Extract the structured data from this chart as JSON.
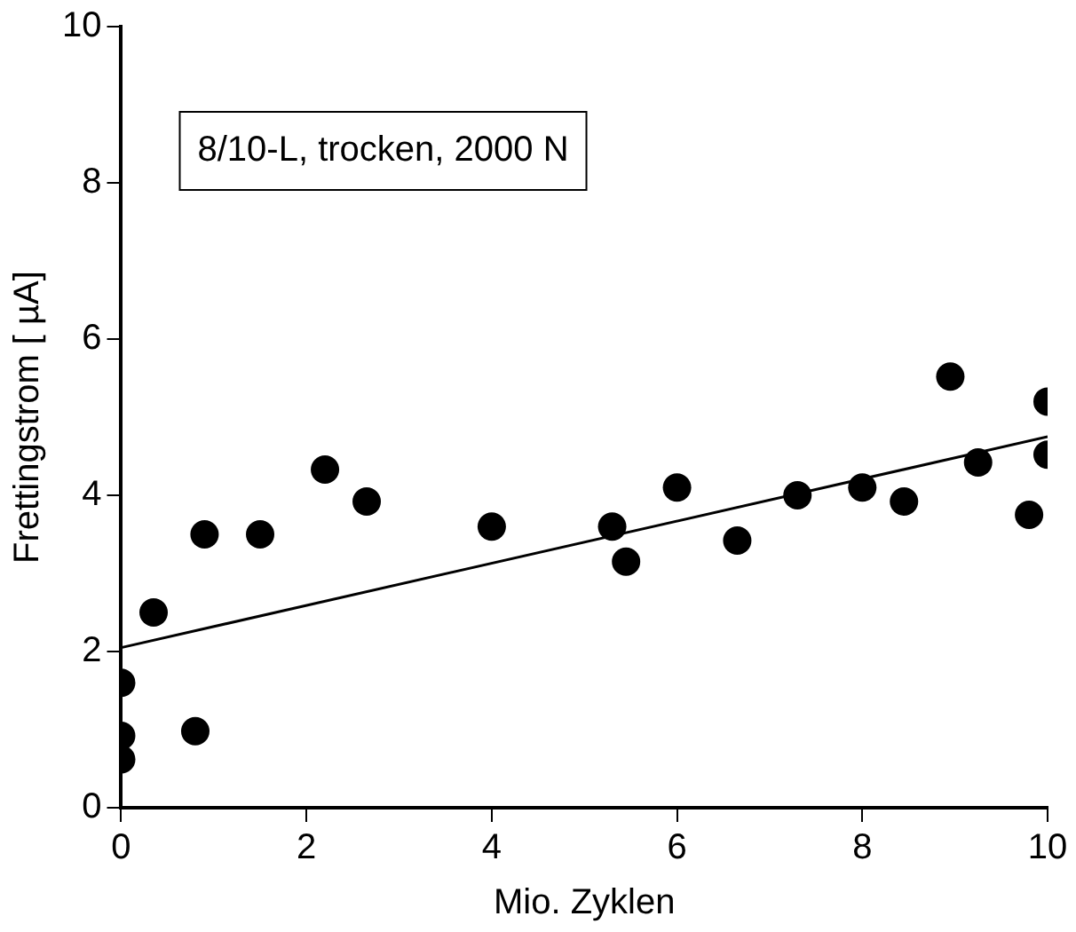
{
  "chart_data": {
    "type": "scatter",
    "xlabel": "Mio. Zyklen",
    "ylabel": "Frettingstrom [ µA]",
    "annotations": [
      "8/10-L, trocken, 2000 N"
    ],
    "xlim": [
      0,
      10
    ],
    "xticks": [
      0,
      2,
      4,
      6,
      8,
      10
    ],
    "ylim": [
      0,
      10
    ],
    "yticks": [
      0,
      2,
      4,
      6,
      8,
      10
    ],
    "grid": false,
    "legend": false,
    "marker": "circle",
    "series": [
      {
        "color": "#000000",
        "x": [
          0,
          0,
          0,
          0.35,
          0.8,
          0.9,
          1.5,
          2.2,
          2.65,
          4,
          5.3,
          5.45,
          6,
          6.65,
          7.3,
          8,
          8.45,
          8.95,
          9.25,
          9.8,
          10,
          10
        ],
        "values": [
          1.6,
          0.92,
          0.62,
          2.5,
          0.98,
          3.5,
          3.5,
          4.33,
          3.92,
          3.6,
          3.6,
          3.15,
          4.1,
          3.42,
          4.0,
          4.1,
          3.92,
          5.52,
          4.42,
          3.75,
          5.2,
          4.52
        ]
      },
      {
        "type": "line",
        "color": "#000000",
        "x": [
          0,
          10
        ],
        "values": [
          2.05,
          4.75
        ],
        "marker": "none"
      }
    ]
  }
}
